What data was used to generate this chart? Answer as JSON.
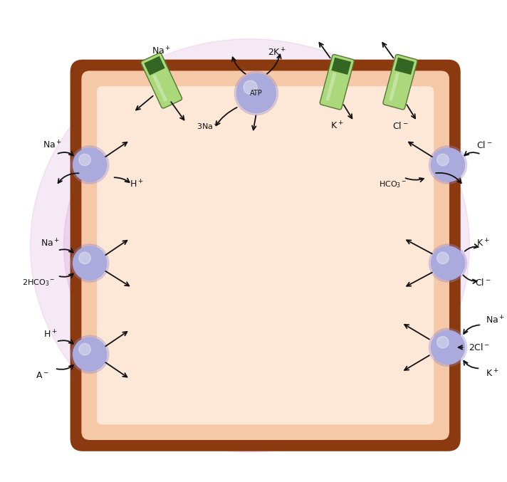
{
  "bg_outer": "#ffffff",
  "glow_color": "#ddb8dd",
  "cell_fill": "#f5c8a8",
  "cell_inner_fill": "#fde8d8",
  "cell_border": "#8B3A10",
  "purple_fill": "#aaaadd",
  "purple_edge": "#8888bb",
  "green_body": "#aad87a",
  "green_dark": "#336622",
  "green_edge": "#557733",
  "arrow_color": "#111111",
  "text_color": "#111111",
  "fs": 9,
  "fs_small": 8
}
